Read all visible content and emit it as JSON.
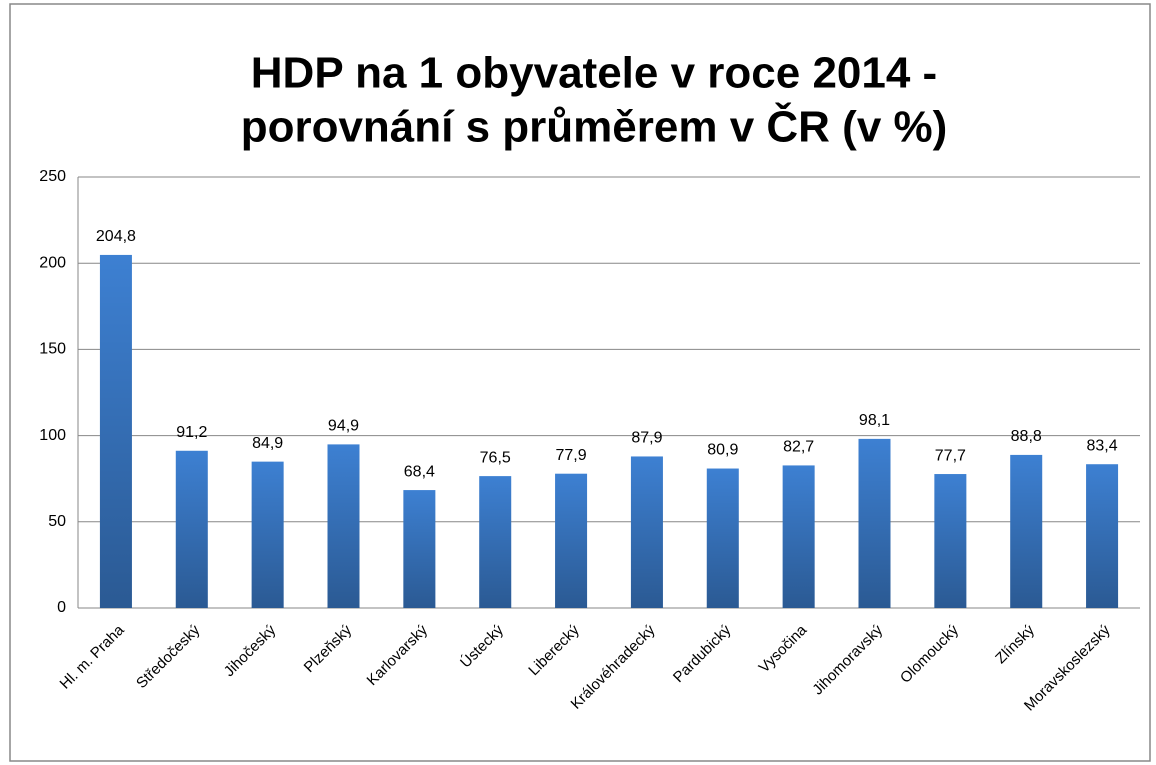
{
  "chart_data": {
    "type": "bar",
    "title": [
      "HDP na 1 obyvatele v roce 2014 -",
      "porovnání s průměrem v ČR (v %)"
    ],
    "categories": [
      "Hl. m. Praha",
      "Středočeský",
      "Jihočeský",
      "Plzeňský",
      "Karlovarský",
      "Ústecký",
      "Liberecký",
      "Královéhradecký",
      "Pardubický",
      "Vysočina",
      "Jihomoravský",
      "Olomoucký",
      "Zlínský",
      "Moravskoslezský"
    ],
    "values": [
      204.8,
      91.2,
      84.9,
      94.9,
      68.4,
      76.5,
      77.9,
      87.9,
      80.9,
      82.7,
      98.1,
      77.7,
      88.8,
      83.4
    ],
    "value_labels": [
      "204,8",
      "91,2",
      "84,9",
      "94,9",
      "68,4",
      "76,5",
      "77,9",
      "87,9",
      "80,9",
      "82,7",
      "98,1",
      "77,7",
      "88,8",
      "83,4"
    ],
    "color": "#3d80d2",
    "ylim": [
      0,
      250
    ],
    "yticks": [
      0,
      50,
      100,
      150,
      200,
      250
    ],
    "grid": true
  }
}
